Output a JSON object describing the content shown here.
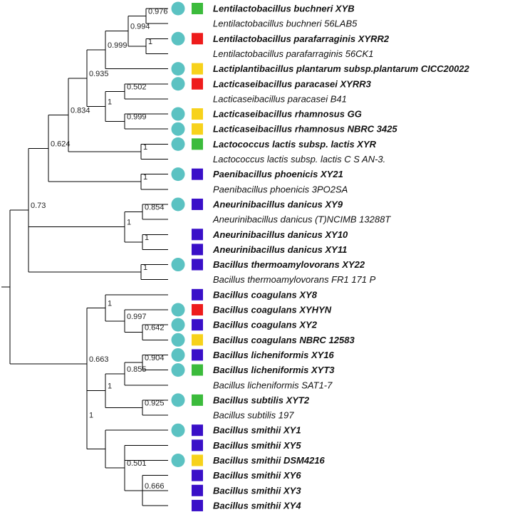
{
  "colors": {
    "circle": "#5bc2c2",
    "green": "#3cbb3c",
    "red": "#ee1c1c",
    "yellow": "#f7d21c",
    "blue": "#3a10c8",
    "line": "#000000"
  },
  "taxa": [
    {
      "label": "Lentilactobacillus buchneri XYB",
      "bold": true,
      "circle": true,
      "square": "green"
    },
    {
      "label": "Lentilactobacillus buchneri 56LAB5",
      "bold": false,
      "circle": false,
      "square": null
    },
    {
      "label": "Lentilactobacillus parafarraginis XYRR2",
      "bold": true,
      "circle": true,
      "square": "red"
    },
    {
      "label": "Lentilactobacillus parafarraginis 56CK1",
      "bold": false,
      "circle": false,
      "square": null
    },
    {
      "label": "Lactiplantibacillus plantarum subsp.plantarum CICC20022",
      "bold": true,
      "circle": true,
      "square": "yellow"
    },
    {
      "label": "Lacticaseibacillus paracasei XYRR3",
      "bold": true,
      "circle": true,
      "square": "red"
    },
    {
      "label": "Lacticaseibacillus paracasei B41",
      "bold": false,
      "circle": false,
      "square": null
    },
    {
      "label": "Lacticaseibacillus rhamnosus GG",
      "bold": true,
      "circle": true,
      "square": "yellow"
    },
    {
      "label": "Lacticaseibacillus rhamnosus NBRC 3425",
      "bold": true,
      "circle": true,
      "square": "yellow"
    },
    {
      "label": "Lactococcus lactis subsp. lactis XYR",
      "bold": true,
      "circle": true,
      "square": "green"
    },
    {
      "label": "Lactococcus lactis subsp. lactis C S AN-3.",
      "bold": false,
      "circle": false,
      "square": null
    },
    {
      "label": "Paenibacillus phoenicis XY21",
      "bold": true,
      "circle": true,
      "square": "blue"
    },
    {
      "label": "Paenibacillus phoenicis 3PO2SA",
      "bold": false,
      "circle": false,
      "square": null
    },
    {
      "label": "Aneurinibacillus danicus XY9",
      "bold": true,
      "circle": true,
      "square": "blue"
    },
    {
      "label": "Aneurinibacillus danicus (T)NCIMB 13288T",
      "bold": false,
      "circle": false,
      "square": null
    },
    {
      "label": "Aneurinibacillus danicus XY10",
      "bold": true,
      "circle": false,
      "square": "blue"
    },
    {
      "label": "Aneurinibacillus danicus XY11",
      "bold": true,
      "circle": false,
      "square": "blue"
    },
    {
      "label": "Bacillus thermoamylovorans XY22",
      "bold": true,
      "circle": true,
      "square": "blue"
    },
    {
      "label": "Bacillus thermoamylovorans FR1 171 P",
      "bold": false,
      "circle": false,
      "square": null
    },
    {
      "label": "Bacillus coagulans XY8",
      "bold": true,
      "circle": false,
      "square": "blue"
    },
    {
      "label": "Bacillus coagulans XYHYN",
      "bold": true,
      "circle": true,
      "square": "red"
    },
    {
      "label": "Bacillus coagulans XY2",
      "bold": true,
      "circle": true,
      "square": "blue"
    },
    {
      "label": "Bacillus coagulans NBRC 12583",
      "bold": true,
      "circle": true,
      "square": "yellow"
    },
    {
      "label": "Bacillus licheniformis XY16",
      "bold": true,
      "circle": true,
      "square": "blue"
    },
    {
      "label": "Bacillus licheniformis XYT3",
      "bold": true,
      "circle": true,
      "square": "green"
    },
    {
      "label": "Bacillus licheniformis SAT1-7",
      "bold": false,
      "circle": false,
      "square": null
    },
    {
      "label": "Bacillus subtilis XYT2",
      "bold": true,
      "circle": true,
      "square": "green"
    },
    {
      "label": "Bacillus subtilis 197",
      "bold": false,
      "circle": false,
      "square": null
    },
    {
      "label": "Bacillus smithii XY1",
      "bold": true,
      "circle": true,
      "square": "blue"
    },
    {
      "label": "Bacillus smithii XY5",
      "bold": true,
      "circle": false,
      "square": "blue"
    },
    {
      "label": "Bacillus smithii DSM4216",
      "bold": true,
      "circle": true,
      "square": "yellow"
    },
    {
      "label": "Bacillus smithii XY6",
      "bold": true,
      "circle": false,
      "square": "blue"
    },
    {
      "label": "Bacillus smithii XY3",
      "bold": true,
      "circle": false,
      "square": "blue"
    },
    {
      "label": "Bacillus smithii XY4",
      "bold": true,
      "circle": false,
      "square": "blue"
    }
  ],
  "supports": [
    "0.976",
    "1",
    "0.994",
    "0.999",
    "0.502",
    "0.999",
    "1",
    "0.935",
    "1",
    "0.834",
    "1",
    "0.854",
    "1",
    "1",
    "0.624",
    "1",
    "0.73",
    "0.997",
    "0.642",
    "1",
    "0.904",
    "0.855",
    "0.925",
    "1",
    "0.501",
    "0.666",
    "1",
    "0.663"
  ]
}
